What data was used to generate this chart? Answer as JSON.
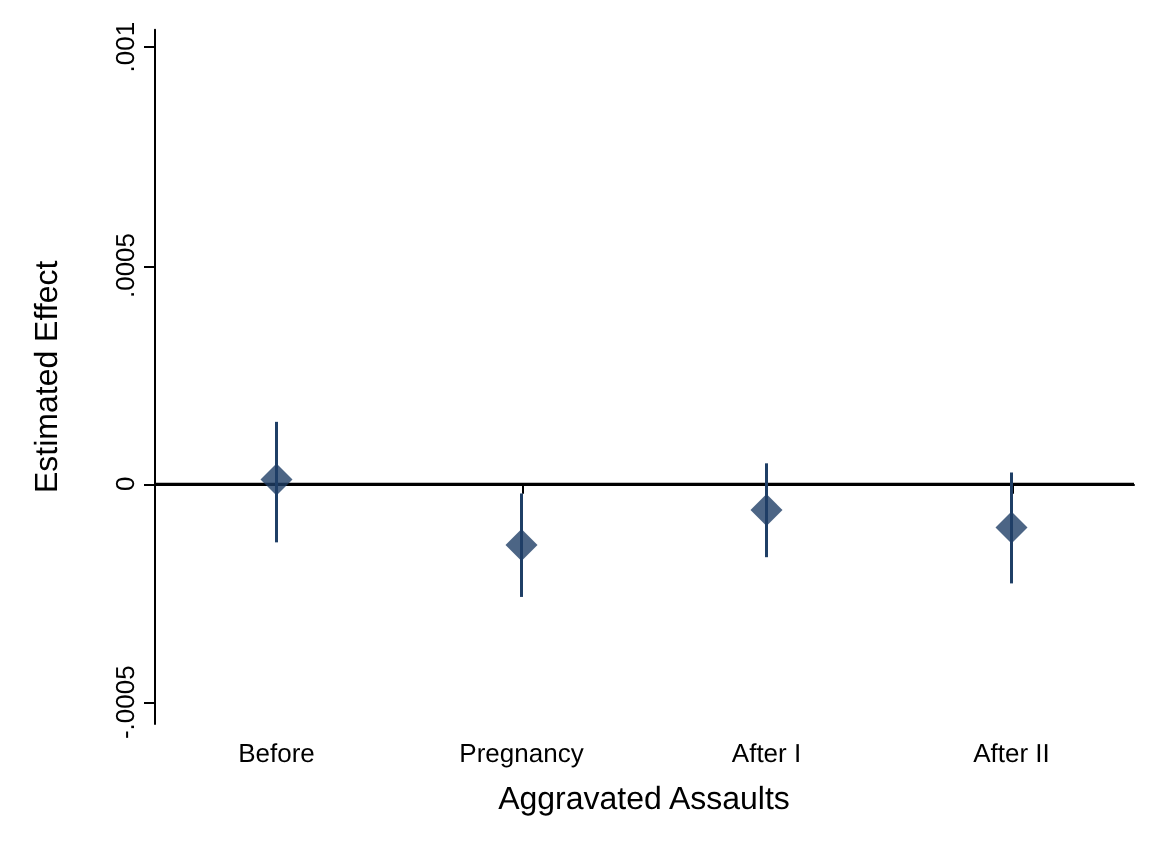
{
  "chart_data": {
    "type": "scatter",
    "xlabel": "Aggravated Assaults",
    "ylabel": "Estimated Effect",
    "categories": [
      "Before",
      "Pregnancy",
      "After I",
      "After II"
    ],
    "values": [
      1e-05,
      -0.00014,
      -6e-05,
      -0.0001
    ],
    "errors": [
      [
        -0.000134,
        0.000142
      ],
      [
        -0.000259,
        -2.2e-05
      ],
      [
        -0.000168,
        4.7e-05
      ],
      [
        -0.000228,
        2.6e-05
      ]
    ],
    "color": "#1f3f66",
    "marker": "diamond",
    "ylim": [
      -0.00055,
      0.00104
    ],
    "yticks": [
      {
        "value": -0.0005,
        "label": "-.0005"
      },
      {
        "value": 0,
        "label": "0"
      },
      {
        "value": 0.0005,
        "label": ".0005"
      },
      {
        "value": 0.001,
        "label": ".001"
      }
    ],
    "ref_lines": [
      {
        "axis": "y",
        "value": 0,
        "color": "#000000"
      }
    ],
    "grid": false
  }
}
